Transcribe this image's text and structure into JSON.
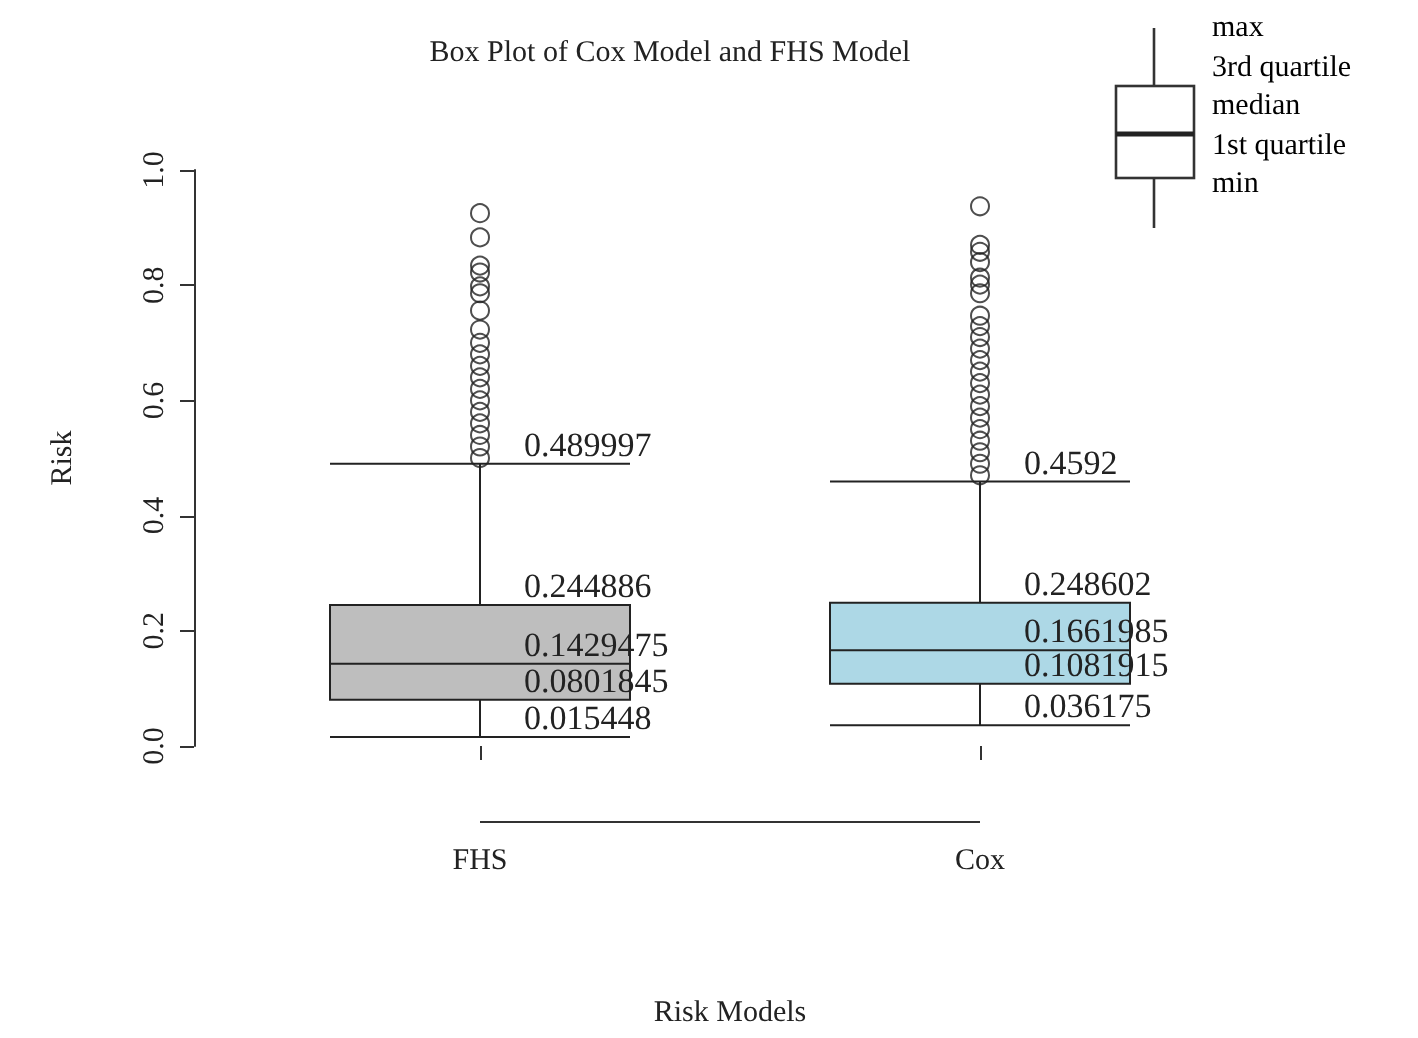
{
  "chart_data": {
    "type": "box",
    "title": "Box Plot of Cox Model and FHS Model",
    "xlabel": "Risk Models",
    "ylabel": "Risk",
    "categories": [
      "FHS",
      "Cox"
    ],
    "colors": [
      "#bebebe",
      "#add8e6"
    ],
    "boxes": [
      {
        "low": 0.015448,
        "q1": 0.0801845,
        "median": 0.1429475,
        "q3": 0.244886,
        "high": 0.489997,
        "outliers": [
          0.925,
          0.883,
          0.834,
          0.822,
          0.798,
          0.786,
          0.756,
          0.723,
          0.7,
          0.68,
          0.66,
          0.64,
          0.62,
          0.6,
          0.58,
          0.56,
          0.54,
          0.52,
          0.5
        ]
      },
      {
        "low": 0.036175,
        "q1": 0.1081915,
        "median": 0.1661985,
        "q3": 0.248602,
        "high": 0.4592,
        "outliers": [
          0.937,
          0.87,
          0.858,
          0.84,
          0.813,
          0.801,
          0.786,
          0.747,
          0.729,
          0.71,
          0.69,
          0.67,
          0.65,
          0.63,
          0.61,
          0.59,
          0.57,
          0.55,
          0.53,
          0.51,
          0.49,
          0.47
        ]
      }
    ],
    "ylim": [
      0,
      1
    ],
    "yticks": [
      {
        "value": 0,
        "label": "0.0"
      },
      0.2,
      0.4,
      0.6,
      0.8,
      {
        "value": 1,
        "label": "1.0"
      }
    ],
    "grid": false,
    "annotations": [
      {
        "text": "0.489997",
        "x": "FHS",
        "y": 0.489997
      },
      {
        "text": "0.244886",
        "x": "FHS",
        "y": 0.244886
      },
      {
        "text": "0.1429475",
        "x": "FHS",
        "y": 0.1429475
      },
      {
        "text": "0.0801845",
        "x": "FHS",
        "y": 0.0801845
      },
      {
        "text": "0.015448",
        "x": "FHS",
        "y": 0.015448
      },
      {
        "text": "0.4592",
        "x": "Cox",
        "y": 0.4592
      },
      {
        "text": "0.248602",
        "x": "Cox",
        "y": 0.248602
      },
      {
        "text": "0.1661985",
        "x": "Cox",
        "y": 0.1661985
      },
      {
        "text": "0.1081915",
        "x": "Cox",
        "y": 0.1081915
      },
      {
        "text": "0.036175",
        "x": "Cox",
        "y": 0.036175
      },
      "max",
      "3rd quartile",
      "median",
      "1st quartile",
      "min"
    ]
  }
}
